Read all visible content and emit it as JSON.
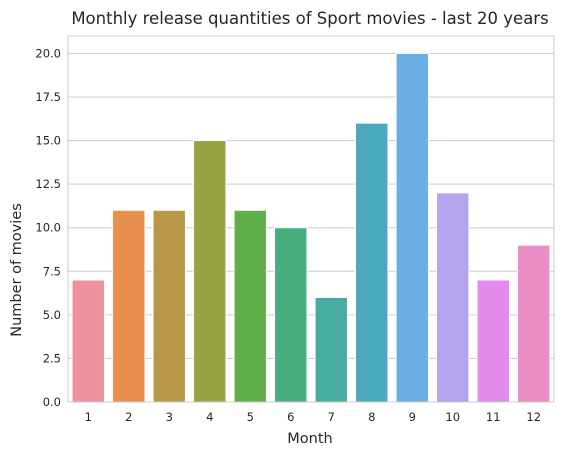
{
  "chart_data": {
    "type": "bar",
    "title": "Monthly release quantities of Sport movies - last 20 years",
    "xlabel": "Month",
    "ylabel": "Number of movies",
    "categories": [
      "1",
      "2",
      "3",
      "4",
      "5",
      "6",
      "7",
      "8",
      "9",
      "10",
      "11",
      "12"
    ],
    "values": [
      7,
      11,
      11,
      15,
      11,
      10,
      6,
      16,
      20,
      12,
      7,
      9
    ],
    "ylim": [
      0,
      21
    ],
    "yticks": [
      0,
      2.5,
      5,
      7.5,
      10,
      12.5,
      15,
      17.5,
      20
    ],
    "ytick_labels": [
      "0.0",
      "2.5",
      "5.0",
      "7.5",
      "10.0",
      "12.5",
      "15.0",
      "17.5",
      "20.0"
    ],
    "grid": "horizontal",
    "colors": [
      "#ee919f",
      "#e88f4e",
      "#b89846",
      "#98a442",
      "#60ae47",
      "#47ae7e",
      "#47aca1",
      "#4aa9bd",
      "#6baee3",
      "#b6a3ed",
      "#e18bed",
      "#eb8dc6"
    ]
  }
}
